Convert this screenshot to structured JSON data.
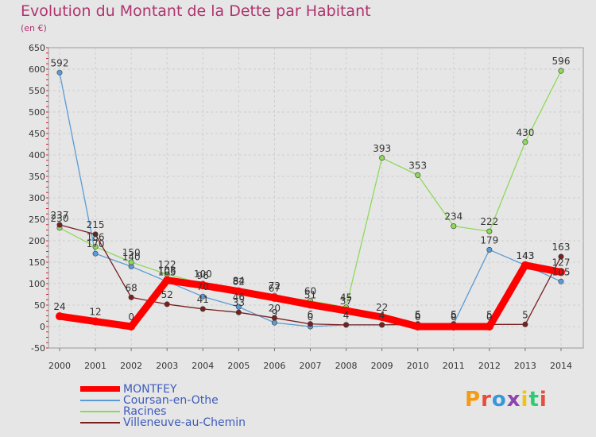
{
  "header": {
    "title": "Evolution du Montant de la Dette par Habitant",
    "subtitle": "(en €)"
  },
  "logo": {
    "text": "Proxiti",
    "colors": [
      "#f39c12",
      "#e74c3c",
      "#3498db",
      "#8e44ad",
      "#f1c40f",
      "#2ecc71",
      "#e74c3c"
    ]
  },
  "chart_data": {
    "type": "line",
    "title": "Evolution du Montant de la Dette par Habitant",
    "subtitle": "(en €)",
    "xlabel": "",
    "ylabel": "",
    "x": [
      "2000",
      "2001",
      "2002",
      "2003",
      "2004",
      "2005",
      "2006",
      "2007",
      "2008",
      "2009",
      "2010",
      "2011",
      "2012",
      "2013",
      "2014"
    ],
    "ylim": [
      -50,
      650
    ],
    "yticks": [
      -50,
      0,
      50,
      100,
      150,
      200,
      250,
      300,
      350,
      400,
      450,
      500,
      550,
      600,
      650
    ],
    "ytick_labels": [
      "-50",
      "0",
      "50",
      "100",
      "150",
      "200",
      "250",
      "300",
      "350",
      "400",
      "450",
      "500",
      "550",
      "600",
      "650"
    ],
    "grid": true,
    "legend_position": "bottom-left",
    "series": [
      {
        "name": "MONTFEY",
        "color": "#ff0000",
        "values": [
          24,
          12,
          0,
          108,
          96,
          82,
          67,
          51,
          37,
          22,
          0,
          0,
          0,
          143,
          127
        ],
        "labels": [
          "24",
          "12",
          "0",
          "108",
          "96",
          "82",
          "67",
          "51",
          "37",
          "22",
          "0",
          "0",
          "0",
          "143",
          "127"
        ]
      },
      {
        "name": "Coursan-en-Othe",
        "color": "#5b9bd5",
        "values": [
          592,
          170,
          140,
          105,
          70,
          46,
          9,
          0,
          4,
          4,
          6,
          6,
          179,
          143,
          105
        ],
        "labels": [
          "592",
          "170",
          "140",
          "105",
          "70",
          "46",
          "9",
          "0",
          "4",
          "4",
          "6",
          "6",
          "179",
          "143",
          "105"
        ]
      },
      {
        "name": "Racines",
        "color": "#8ed95a",
        "values": [
          230,
          186,
          150,
          122,
          100,
          84,
          72,
          60,
          45,
          393,
          353,
          234,
          222,
          430,
          596
        ],
        "labels": [
          "230",
          "186",
          "150",
          "122",
          "100",
          "84",
          "72",
          "60",
          "45",
          "393",
          "353",
          "234",
          "222",
          "430",
          "596"
        ]
      },
      {
        "name": "Villeneuve-au-Chemin",
        "color": "#7a1f1f",
        "values": [
          237,
          215,
          68,
          52,
          41,
          33,
          20,
          6,
          4,
          4,
          5,
          5,
          5,
          5,
          163
        ],
        "labels": [
          "237",
          "215",
          "68",
          "52",
          "41",
          "33",
          "20",
          "6",
          "4",
          "4",
          "5",
          "5",
          "5",
          "5",
          "163"
        ]
      }
    ]
  }
}
